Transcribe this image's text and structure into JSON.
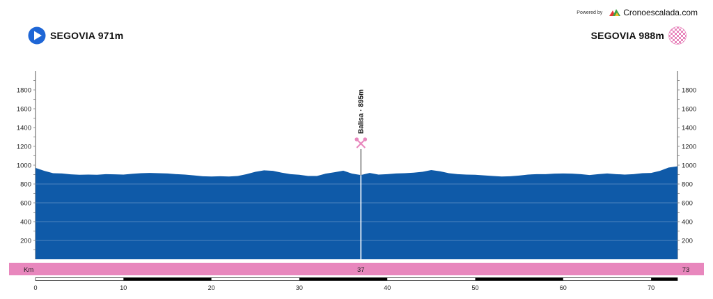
{
  "credit": {
    "powered_by": "Powered by",
    "brand": "Cronoescalada.com",
    "brand_colors": [
      "#e53935",
      "#43a047",
      "#fbc02d"
    ]
  },
  "start": {
    "label": "SEGOVIA 971m",
    "icon": "start-play-icon",
    "color": "#1e66d6"
  },
  "finish": {
    "label": "SEGOVIA 988m",
    "icon": "checkered-flag-icon",
    "colors": [
      "#e887bd",
      "#ffffff"
    ]
  },
  "colors": {
    "profile_fill": "#0f5aa8",
    "km_band": "#e887bd",
    "marker": "#e887bd"
  },
  "chart_data": {
    "type": "area",
    "title": "",
    "xlabel": "",
    "ylabel": "",
    "x_range": [
      0,
      73
    ],
    "y_range": [
      0,
      2000
    ],
    "y_ticks": [
      200,
      400,
      600,
      800,
      1000,
      1200,
      1400,
      1600,
      1800
    ],
    "x_ticks": [
      0,
      10,
      20,
      30,
      40,
      50,
      60,
      70
    ],
    "km_band": {
      "label": "Km",
      "marker_km": "37",
      "end_km": "73"
    },
    "distance_km": [
      0,
      1,
      2,
      3,
      4,
      5,
      6,
      7,
      8,
      9,
      10,
      11,
      12,
      13,
      14,
      15,
      16,
      17,
      18,
      19,
      20,
      21,
      22,
      23,
      24,
      25,
      26,
      27,
      28,
      29,
      30,
      31,
      32,
      33,
      34,
      35,
      36,
      37,
      38,
      39,
      40,
      41,
      42,
      43,
      44,
      45,
      46,
      47,
      48,
      49,
      50,
      51,
      52,
      53,
      54,
      55,
      56,
      57,
      58,
      59,
      60,
      61,
      62,
      63,
      64,
      65,
      66,
      67,
      68,
      69,
      70,
      71,
      72,
      73
    ],
    "elevation_m": [
      971,
      940,
      915,
      912,
      903,
      898,
      900,
      898,
      905,
      903,
      900,
      908,
      915,
      918,
      915,
      912,
      905,
      900,
      892,
      882,
      880,
      882,
      880,
      885,
      905,
      930,
      945,
      940,
      920,
      905,
      898,
      885,
      885,
      910,
      925,
      942,
      910,
      895,
      918,
      900,
      905,
      912,
      915,
      920,
      930,
      948,
      935,
      915,
      905,
      900,
      898,
      892,
      885,
      880,
      882,
      890,
      900,
      905,
      905,
      910,
      912,
      910,
      905,
      895,
      905,
      912,
      905,
      900,
      905,
      915,
      918,
      940,
      975,
      988
    ],
    "markers": [
      {
        "name": "Balisa",
        "km": 37,
        "elevation_m": 895,
        "label": "Balisa · 895m",
        "icon": "fork-knife-icon"
      }
    ]
  }
}
